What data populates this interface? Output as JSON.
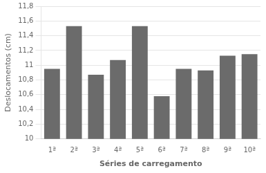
{
  "chart_data": {
    "type": "bar",
    "categories": [
      "1ª",
      "2ª",
      "3ª",
      "4ª",
      "5ª",
      "6ª",
      "7ª",
      "8ª",
      "9ª",
      "10ª"
    ],
    "values": [
      10.95,
      11.53,
      10.87,
      11.07,
      11.53,
      10.58,
      10.95,
      10.93,
      11.13,
      11.15
    ],
    "color": "#6b6b6b",
    "xlabel": "Séries de carregamento",
    "ylabel": "Deslocamentos (cm)",
    "ylim": [
      10.0,
      11.8
    ],
    "yticks": [
      10,
      {
        "value": 10.2,
        "label": "10,2"
      },
      {
        "value": 10.4,
        "label": "10,4"
      },
      {
        "value": 10.6,
        "label": "10,6"
      },
      {
        "value": 10.8,
        "label": "10,8"
      },
      11,
      {
        "value": 11.2,
        "label": "11,2"
      },
      {
        "value": 11.4,
        "label": "11,4"
      },
      {
        "value": 11.6,
        "label": "11,6"
      },
      {
        "value": 11.8,
        "label": "11,8"
      }
    ],
    "grid": true
  }
}
